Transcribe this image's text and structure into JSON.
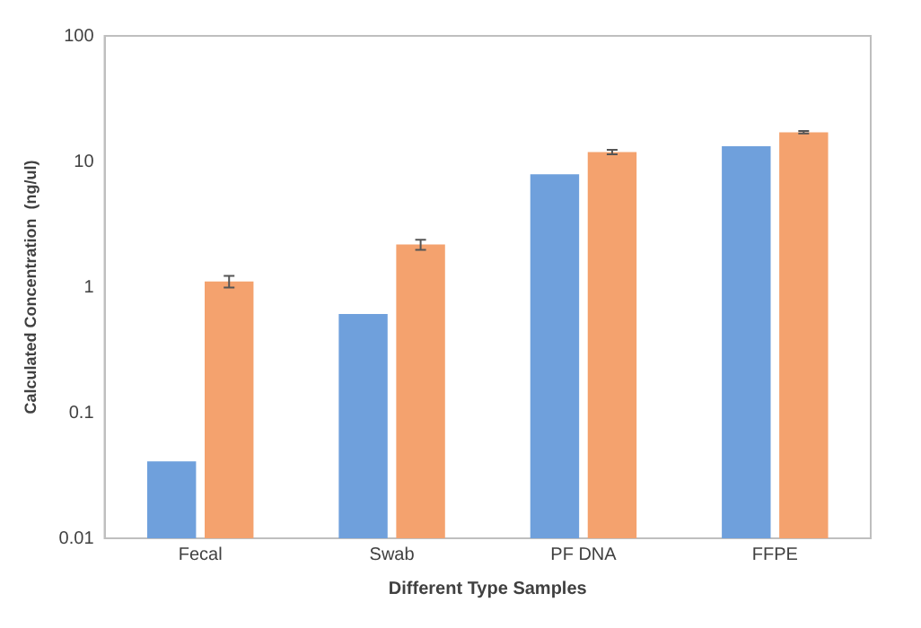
{
  "chart_data": {
    "type": "bar",
    "xlabel": "Different Type Samples",
    "ylabel": "Calculated Concentration  (ng/ul)",
    "categories": [
      "Fecal",
      "Swab",
      "PF DNA",
      "FFPE"
    ],
    "series": [
      {
        "color": "#6fa0dc",
        "values": [
          0.041,
          0.61,
          7.9,
          13.2
        ],
        "errors": [
          null,
          null,
          null,
          null
        ]
      },
      {
        "color": "#f4a26e",
        "values": [
          1.11,
          2.18,
          11.9,
          17.1
        ],
        "errors": [
          0.12,
          0.2,
          0.5,
          0.4
        ]
      }
    ],
    "log": "y",
    "ylim": [
      0.01,
      100
    ],
    "yticks": [
      0.01,
      0.1,
      1,
      10,
      100
    ],
    "grid": false,
    "legend": false
  }
}
